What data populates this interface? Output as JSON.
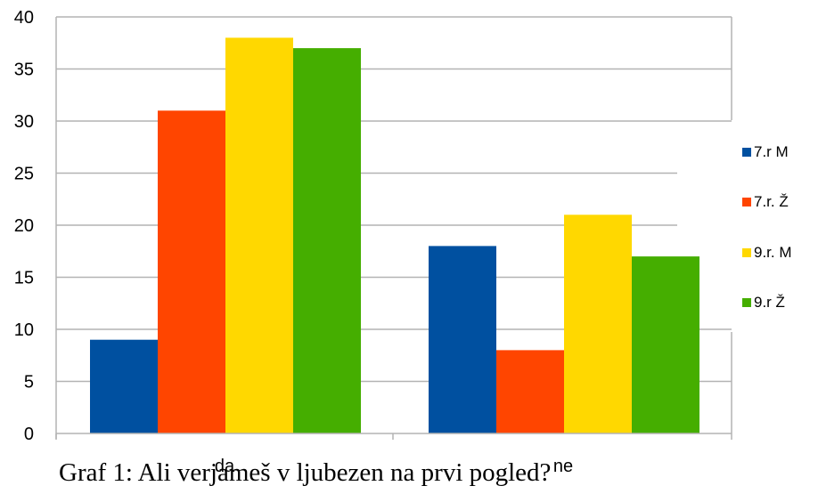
{
  "caption": "Graf 1: Ali verjameš v ljubezen na prvi pogled?",
  "chart_data": {
    "type": "bar",
    "categories": [
      "da",
      "ne"
    ],
    "series": [
      {
        "name": "7.r M",
        "values": [
          9,
          18
        ],
        "color": "#0050A0"
      },
      {
        "name": "7.r. Ž",
        "values": [
          31,
          8
        ],
        "color": "#FF4500"
      },
      {
        "name": "9.r. M",
        "values": [
          38,
          21
        ],
        "color": "#FFD800"
      },
      {
        "name": "9.r Ž",
        "values": [
          37,
          17
        ],
        "color": "#45AE00"
      }
    ],
    "yticks": [
      "0",
      "5",
      "10",
      "15",
      "20",
      "25",
      "30",
      "35",
      "40"
    ],
    "ylim": [
      0,
      40
    ],
    "grid": true,
    "legend": "right",
    "title": "",
    "xlabel": "",
    "ylabel": ""
  }
}
